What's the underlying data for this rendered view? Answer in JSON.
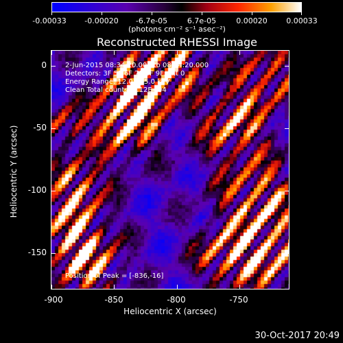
{
  "colorbar": {
    "labels": [
      "-0.00033",
      "-0.00020",
      "-6.7e-05",
      "6.7e-05",
      "0.00020",
      "0.00033"
    ],
    "units": "(photons cm⁻² s⁻¹ asec⁻²)",
    "colors": [
      "#0000ff",
      "#5a00b0",
      "#220022",
      "#ff2200",
      "#ff9900",
      "#ffffff"
    ]
  },
  "title": "Reconstructed RHESSI Image",
  "overlay": {
    "time_range": "2-Jun-2015 08:34:20.000 to 08:44:20.000",
    "detectors": "Detectors: 3F 5F 6F 7F 8F 9F, Att 0",
    "energy": "Energy Range: 12.0 - 25.0 keV",
    "clean": "Clean    Total counts: 2.12E+04",
    "peak": "Position of Peak = [-836,-16]"
  },
  "axes": {
    "y_title": "Heliocentric Y (arcsec)",
    "x_title": "Heliocentric X (arcsec)",
    "y_ticks": [
      "0",
      "-50",
      "-100",
      "-150"
    ],
    "x_ticks": [
      "-900",
      "-850",
      "-800",
      "-750"
    ],
    "xlim": [
      -900,
      -718
    ],
    "ylim": [
      -183,
      8
    ]
  },
  "footer": "30-Oct-2017 20:49"
}
